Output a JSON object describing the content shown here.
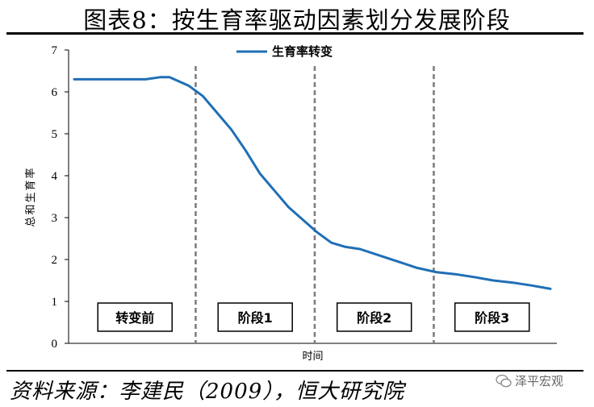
{
  "header": {
    "title": "图表8：按生育率驱动因素划分发展阶段"
  },
  "footer": {
    "source": "资料来源：李建民（2009），恒大研究院",
    "watermark": "泽平宏观"
  },
  "chart_data": {
    "type": "line",
    "title": "",
    "xlabel": "时间",
    "ylabel": "总和生育率",
    "ylim": [
      0,
      7
    ],
    "yticks": [
      0,
      1,
      2,
      3,
      4,
      5,
      6,
      7
    ],
    "x_range": [
      0,
      100
    ],
    "grid": false,
    "legend_position": "top-center",
    "series": [
      {
        "name": "生育率转变",
        "color": "#1f6fb5",
        "x": [
          0,
          5,
          10,
          15,
          18,
          20,
          22,
          24,
          27,
          30,
          33,
          36,
          39,
          42,
          45,
          48,
          51,
          54,
          57,
          60,
          64,
          68,
          72,
          76,
          80,
          84,
          88,
          92,
          96,
          100
        ],
        "y": [
          6.3,
          6.3,
          6.3,
          6.3,
          6.35,
          6.35,
          6.25,
          6.15,
          5.9,
          5.5,
          5.1,
          4.6,
          4.05,
          3.65,
          3.25,
          2.95,
          2.65,
          2.4,
          2.3,
          2.25,
          2.1,
          1.95,
          1.8,
          1.7,
          1.65,
          1.58,
          1.5,
          1.45,
          1.38,
          1.3
        ]
      }
    ],
    "stage_boundaries": [
      25.5,
      50.5,
      75.5
    ],
    "stages": [
      "转变前",
      "阶段1",
      "阶段2",
      "阶段3"
    ]
  }
}
